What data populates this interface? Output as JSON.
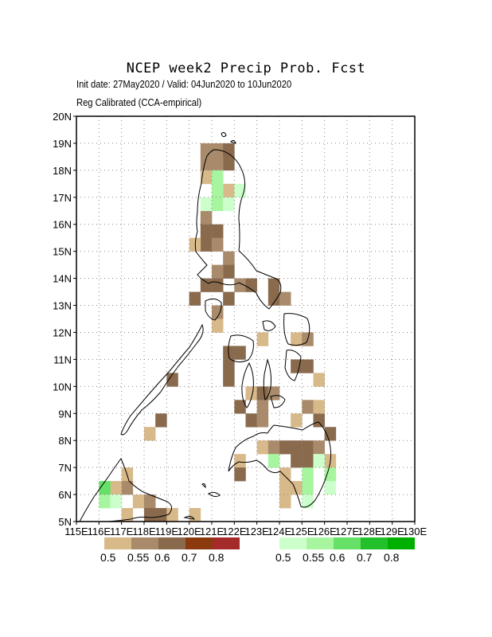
{
  "title": "NCEP week2 Precip Prob. Fcst",
  "subtitle_1": "Init date: 27May2020 / Valid: 04Jun2020 to 10Jun2020",
  "subtitle_2": "Reg Calibrated (CCA-empirical)",
  "x_tick_labels": [
    "115E",
    "116E",
    "117E",
    "118E",
    "119E",
    "120E",
    "121E",
    "122E",
    "123E",
    "124E",
    "125E",
    "126E",
    "127E",
    "128E",
    "129E",
    "130E"
  ],
  "y_tick_labels": [
    "5N",
    "6N",
    "7N",
    "8N",
    "9N",
    "10N",
    "11N",
    "12N",
    "13N",
    "14N",
    "15N",
    "16N",
    "17N",
    "18N",
    "19N",
    "20N"
  ],
  "axis_ranges": {
    "lon": [
      115,
      130
    ],
    "lat": [
      5,
      20
    ]
  },
  "grid": "dotted",
  "dry_legend": {
    "labels": [
      "0.5",
      "0.55",
      "0.6",
      "0.7",
      "0.8"
    ],
    "colors": [
      "#d8b98a",
      "#a98b6b",
      "#8a6a4d",
      "#8b3a10",
      "#a52a2a"
    ]
  },
  "wet_legend": {
    "labels": [
      "0.5",
      "0.55",
      "0.6",
      "0.7",
      "0.8"
    ],
    "colors": [
      "#ccffcc",
      "#a8f5a0",
      "#66e066",
      "#22c02a",
      "#00b000"
    ]
  },
  "chart_data": {
    "type": "heatmap",
    "grid_resolution_deg": 0.5,
    "note_levels": "dry: 1=0.5,2=0.55,3=0.6 ; wet: 1=0.5,2=0.55,3=0.6",
    "dry_cells": [
      [
        120.5,
        18.5,
        2
      ],
      [
        121,
        18.5,
        2
      ],
      [
        121.5,
        18.5,
        3
      ],
      [
        121.5,
        18,
        3
      ],
      [
        121,
        18,
        2
      ],
      [
        120.5,
        18,
        2
      ],
      [
        121,
        17.5,
        1
      ],
      [
        120.5,
        17.5,
        1
      ],
      [
        121.5,
        17,
        1
      ],
      [
        120.5,
        16,
        2
      ],
      [
        120.5,
        15.5,
        3
      ],
      [
        121,
        15.5,
        3
      ],
      [
        120.5,
        15,
        3
      ],
      [
        121,
        15,
        2
      ],
      [
        120,
        15,
        1
      ],
      [
        121.5,
        14.5,
        2
      ],
      [
        121.5,
        14,
        3
      ],
      [
        121,
        14,
        2
      ],
      [
        120.5,
        13.5,
        3
      ],
      [
        121,
        13.5,
        3
      ],
      [
        122,
        13.5,
        2
      ],
      [
        122.5,
        13.5,
        3
      ],
      [
        120,
        13,
        3
      ],
      [
        121.5,
        13,
        3
      ],
      [
        123.5,
        13.5,
        3
      ],
      [
        123.5,
        13,
        3
      ],
      [
        124,
        13,
        2
      ],
      [
        121,
        12.5,
        2
      ],
      [
        121,
        12,
        1
      ],
      [
        123,
        11.5,
        1
      ],
      [
        124.5,
        11.5,
        1
      ],
      [
        125,
        11.5,
        2
      ],
      [
        121.5,
        11,
        3
      ],
      [
        121.5,
        10.5,
        3
      ],
      [
        121.5,
        10,
        3
      ],
      [
        122,
        11,
        3
      ],
      [
        124.5,
        10.5,
        3
      ],
      [
        125,
        10.5,
        3
      ],
      [
        125.5,
        10,
        1
      ],
      [
        122.5,
        9.5,
        1
      ],
      [
        123,
        9.5,
        3
      ],
      [
        123.5,
        9.5,
        2
      ],
      [
        122,
        9,
        3
      ],
      [
        123,
        9,
        2
      ],
      [
        122.5,
        8.5,
        3
      ],
      [
        123,
        8.5,
        2
      ],
      [
        125.5,
        8.5,
        3
      ],
      [
        126,
        8,
        3
      ],
      [
        123,
        7.5,
        1
      ],
      [
        123.5,
        7.5,
        2
      ],
      [
        124,
        7.5,
        3
      ],
      [
        124.5,
        7.5,
        3
      ],
      [
        125,
        7.5,
        3
      ],
      [
        125.5,
        7.5,
        2
      ],
      [
        124.5,
        7,
        3
      ],
      [
        125,
        7,
        3
      ],
      [
        126,
        7,
        1
      ],
      [
        122,
        7,
        1
      ],
      [
        122,
        6.5,
        3
      ],
      [
        124,
        6.5,
        1
      ],
      [
        124,
        6,
        1
      ],
      [
        124.5,
        6,
        1
      ],
      [
        124,
        5.5,
        1
      ],
      [
        117,
        6.5,
        1
      ],
      [
        117,
        6,
        2
      ],
      [
        116.5,
        6,
        1
      ],
      [
        117.5,
        5.5,
        1
      ],
      [
        118,
        5.5,
        2
      ],
      [
        118,
        5,
        3
      ],
      [
        118.5,
        5,
        3
      ],
      [
        117,
        5,
        1
      ],
      [
        119,
        5,
        1
      ],
      [
        120,
        5,
        1
      ],
      [
        119,
        10,
        3
      ],
      [
        118.5,
        8.5,
        3
      ],
      [
        118,
        8,
        1
      ],
      [
        125,
        9,
        2
      ],
      [
        124.5,
        8.5,
        1
      ],
      [
        125.5,
        9,
        1
      ]
    ],
    "wet_cells": [
      [
        121,
        17.5,
        2
      ],
      [
        121,
        17,
        2
      ],
      [
        120.5,
        16.5,
        1
      ],
      [
        121,
        16.5,
        2
      ],
      [
        121.5,
        16.5,
        1
      ],
      [
        122,
        17,
        1
      ],
      [
        116,
        6,
        3
      ],
      [
        116,
        5.5,
        2
      ],
      [
        116.5,
        5.5,
        1
      ],
      [
        125,
        6.5,
        2
      ],
      [
        125,
        6,
        2
      ],
      [
        125,
        5.5,
        1
      ],
      [
        126,
        6.5,
        2
      ],
      [
        126,
        6,
        1
      ],
      [
        125.5,
        7,
        1
      ],
      [
        123.5,
        7,
        2
      ]
    ]
  }
}
